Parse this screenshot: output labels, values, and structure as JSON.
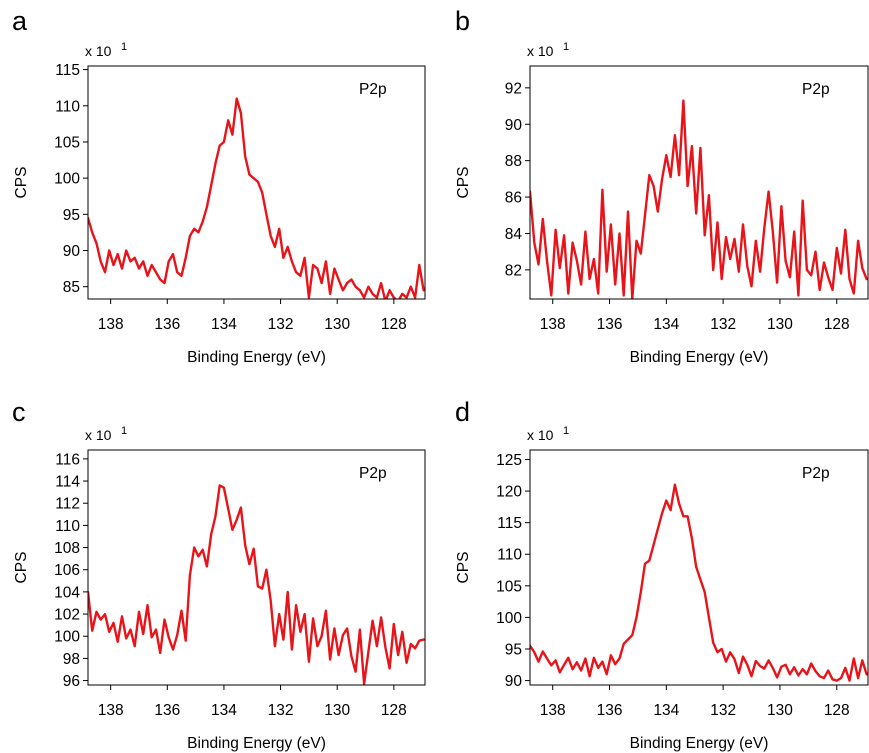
{
  "chart_data": [
    {
      "panel": "a",
      "type": "line",
      "multiplier_base": "x 10",
      "multiplier_exp": "1",
      "annotation": "P2p",
      "xlabel": "Binding Energy (eV)",
      "ylabel": "CPS",
      "xlim": [
        138.8,
        126.9
      ],
      "ylim": [
        83.3,
        115.5
      ],
      "xticks": [
        138,
        136,
        134,
        132,
        130,
        128
      ],
      "yticks": [
        85,
        90,
        95,
        100,
        105,
        110,
        115
      ],
      "series_color": "#e8141a",
      "x": [
        138.8,
        138.65,
        138.5,
        138.35,
        138.2,
        138.05,
        137.9,
        137.75,
        137.6,
        137.45,
        137.3,
        137.15,
        137.0,
        136.85,
        136.7,
        136.55,
        136.4,
        136.25,
        136.1,
        135.95,
        135.8,
        135.65,
        135.5,
        135.35,
        135.2,
        135.05,
        134.9,
        134.75,
        134.6,
        134.45,
        134.3,
        134.15,
        134.0,
        133.85,
        133.7,
        133.55,
        133.4,
        133.25,
        133.1,
        132.95,
        132.8,
        132.65,
        132.5,
        132.35,
        132.2,
        132.05,
        131.9,
        131.75,
        131.6,
        131.45,
        131.3,
        131.15,
        131.0,
        130.85,
        130.7,
        130.55,
        130.4,
        130.25,
        130.1,
        129.95,
        129.8,
        129.65,
        129.5,
        129.35,
        129.2,
        129.05,
        128.9,
        128.75,
        128.6,
        128.45,
        128.3,
        128.15,
        128.0,
        127.85,
        127.7,
        127.55,
        127.4,
        127.25,
        127.1,
        126.95
      ],
      "y": [
        94.5,
        92.5,
        91.0,
        88.5,
        87.0,
        90.0,
        88.0,
        89.5,
        87.5,
        90.0,
        88.5,
        89.0,
        87.5,
        88.5,
        86.5,
        88.0,
        87.0,
        86.0,
        85.5,
        88.5,
        89.5,
        87.0,
        86.5,
        89.0,
        92.0,
        93.0,
        92.5,
        94.0,
        96.0,
        99.0,
        102.0,
        104.5,
        105.0,
        108.0,
        106.0,
        111.0,
        109.0,
        103.0,
        100.5,
        100.0,
        99.5,
        98.0,
        95.0,
        92.0,
        90.5,
        93.0,
        89.0,
        90.5,
        88.5,
        87.0,
        86.5,
        89.0,
        83.5,
        88.0,
        87.5,
        85.5,
        88.5,
        84.0,
        87.5,
        86.0,
        84.5,
        85.5,
        86.0,
        85.0,
        84.5,
        83.5,
        85.0,
        84.0,
        83.5,
        85.5,
        83.0,
        84.5,
        83.5,
        83.0,
        84.0,
        83.5,
        85.0,
        83.5,
        88.0,
        84.5
      ]
    },
    {
      "panel": "b",
      "type": "line",
      "multiplier_base": "x 10",
      "multiplier_exp": "1",
      "annotation": "P2p",
      "xlabel": "Binding Energy (eV)",
      "ylabel": "CPS",
      "xlim": [
        138.8,
        126.9
      ],
      "ylim": [
        80.4,
        93.2
      ],
      "xticks": [
        138,
        136,
        134,
        132,
        130,
        128
      ],
      "yticks": [
        82,
        84,
        86,
        88,
        90,
        92
      ],
      "series_color": "#e8141a",
      "x": [
        138.8,
        138.65,
        138.5,
        138.35,
        138.2,
        138.05,
        137.9,
        137.75,
        137.6,
        137.45,
        137.3,
        137.15,
        137.0,
        136.85,
        136.7,
        136.55,
        136.4,
        136.25,
        136.1,
        135.95,
        135.8,
        135.65,
        135.5,
        135.35,
        135.2,
        135.05,
        134.9,
        134.75,
        134.6,
        134.45,
        134.3,
        134.15,
        134.0,
        133.85,
        133.7,
        133.55,
        133.4,
        133.25,
        133.1,
        132.95,
        132.8,
        132.65,
        132.5,
        132.35,
        132.2,
        132.05,
        131.9,
        131.75,
        131.6,
        131.45,
        131.3,
        131.15,
        131.0,
        130.85,
        130.7,
        130.55,
        130.4,
        130.25,
        130.1,
        129.95,
        129.8,
        129.65,
        129.5,
        129.35,
        129.2,
        129.05,
        128.9,
        128.75,
        128.6,
        128.45,
        128.3,
        128.15,
        128.0,
        127.85,
        127.7,
        127.55,
        127.4,
        127.25,
        127.1,
        126.95
      ],
      "y": [
        86.3,
        83.5,
        82.3,
        84.8,
        82.5,
        80.6,
        84.2,
        82.1,
        83.9,
        80.7,
        83.5,
        82.5,
        81.2,
        84.1,
        81.5,
        82.6,
        80.7,
        86.4,
        81.9,
        84.5,
        81.2,
        84.0,
        80.6,
        85.2,
        80.4,
        83.6,
        82.9,
        85.0,
        87.2,
        86.6,
        85.2,
        87.0,
        88.3,
        87.1,
        89.4,
        87.2,
        91.3,
        86.6,
        88.8,
        85.1,
        88.7,
        83.9,
        86.1,
        82.0,
        84.6,
        81.5,
        83.8,
        82.6,
        83.7,
        81.9,
        84.5,
        82.2,
        81.1,
        83.6,
        81.9,
        84.3,
        86.3,
        84.1,
        81.3,
        85.5,
        82.5,
        81.6,
        84.1,
        80.6,
        85.8,
        82.0,
        81.7,
        83.0,
        80.9,
        82.4,
        81.6,
        80.9,
        83.2,
        81.8,
        84.2,
        81.5,
        80.7,
        83.6,
        82.1,
        81.5
      ]
    },
    {
      "panel": "c",
      "type": "line",
      "multiplier_base": "x 10",
      "multiplier_exp": "1",
      "annotation": "P2p",
      "xlabel": "Binding Energy (eV)",
      "ylabel": "CPS",
      "xlim": [
        138.8,
        126.9
      ],
      "ylim": [
        95.6,
        116.8
      ],
      "xticks": [
        138,
        136,
        134,
        132,
        130,
        128
      ],
      "yticks": [
        96,
        98,
        100,
        102,
        104,
        106,
        108,
        110,
        112,
        114,
        116
      ],
      "series_color": "#e8141a",
      "x": [
        138.8,
        138.65,
        138.5,
        138.35,
        138.2,
        138.05,
        137.9,
        137.75,
        137.6,
        137.45,
        137.3,
        137.15,
        137.0,
        136.85,
        136.7,
        136.55,
        136.4,
        136.25,
        136.1,
        135.95,
        135.8,
        135.65,
        135.5,
        135.35,
        135.2,
        135.05,
        134.9,
        134.75,
        134.6,
        134.45,
        134.3,
        134.15,
        134.0,
        133.85,
        133.7,
        133.55,
        133.4,
        133.25,
        133.1,
        132.95,
        132.8,
        132.65,
        132.5,
        132.35,
        132.2,
        132.05,
        131.9,
        131.75,
        131.6,
        131.45,
        131.3,
        131.15,
        131.0,
        130.85,
        130.7,
        130.55,
        130.4,
        130.25,
        130.1,
        129.95,
        129.8,
        129.65,
        129.5,
        129.35,
        129.2,
        129.05,
        128.9,
        128.75,
        128.6,
        128.45,
        128.3,
        128.15,
        128.0,
        127.85,
        127.7,
        127.55,
        127.4,
        127.25,
        127.1,
        126.95
      ],
      "y": [
        104.0,
        100.5,
        102.2,
        101.5,
        102.0,
        100.4,
        101.2,
        99.5,
        101.8,
        99.8,
        100.6,
        99.1,
        102.2,
        100.2,
        102.8,
        99.9,
        100.6,
        98.5,
        101.5,
        99.9,
        98.8,
        100.1,
        102.3,
        99.6,
        105.5,
        108.0,
        107.2,
        107.8,
        106.3,
        109.2,
        110.8,
        113.6,
        113.4,
        111.5,
        109.6,
        110.5,
        111.6,
        108.2,
        106.5,
        107.9,
        104.5,
        104.3,
        106.0,
        103.2,
        99.1,
        102.0,
        99.7,
        104.0,
        98.8,
        102.8,
        100.4,
        102.0,
        97.7,
        101.6,
        99.1,
        100.0,
        102.3,
        97.9,
        100.7,
        98.3,
        100.1,
        100.7,
        98.2,
        96.8,
        100.6,
        95.7,
        98.6,
        101.4,
        99.1,
        101.7,
        99.0,
        97.1,
        101.1,
        98.3,
        100.4,
        97.6,
        99.3,
        98.9,
        99.6,
        99.7
      ]
    },
    {
      "panel": "d",
      "type": "line",
      "multiplier_base": "x 10",
      "multiplier_exp": "1",
      "annotation": "P2p",
      "xlabel": "Binding Energy (eV)",
      "ylabel": "CPS",
      "xlim": [
        138.8,
        126.9
      ],
      "ylim": [
        89.3,
        126.5
      ],
      "xticks": [
        138,
        136,
        134,
        132,
        130,
        128
      ],
      "yticks": [
        90,
        95,
        100,
        105,
        110,
        115,
        120,
        125
      ],
      "series_color": "#e8141a",
      "x": [
        138.8,
        138.65,
        138.5,
        138.35,
        138.2,
        138.05,
        137.9,
        137.75,
        137.6,
        137.45,
        137.3,
        137.15,
        137.0,
        136.85,
        136.7,
        136.55,
        136.4,
        136.25,
        136.1,
        135.95,
        135.8,
        135.65,
        135.5,
        135.35,
        135.2,
        135.05,
        134.9,
        134.75,
        134.6,
        134.45,
        134.3,
        134.15,
        134.0,
        133.85,
        133.7,
        133.55,
        133.4,
        133.25,
        133.1,
        132.95,
        132.8,
        132.65,
        132.5,
        132.35,
        132.2,
        132.05,
        131.9,
        131.75,
        131.6,
        131.45,
        131.3,
        131.15,
        131.0,
        130.85,
        130.7,
        130.55,
        130.4,
        130.25,
        130.1,
        129.95,
        129.8,
        129.65,
        129.5,
        129.35,
        129.2,
        129.05,
        128.9,
        128.75,
        128.6,
        128.45,
        128.3,
        128.15,
        128.0,
        127.85,
        127.7,
        127.55,
        127.4,
        127.25,
        127.1,
        126.95
      ],
      "y": [
        95.5,
        94.5,
        93.0,
        94.6,
        93.5,
        92.4,
        93.2,
        91.3,
        92.5,
        93.6,
        91.8,
        92.9,
        91.6,
        93.5,
        90.7,
        93.6,
        92.0,
        93.0,
        91.0,
        94.0,
        92.6,
        93.5,
        95.8,
        96.5,
        97.2,
        100.0,
        104.0,
        108.5,
        109.0,
        111.5,
        114.0,
        116.5,
        118.5,
        117.0,
        121.0,
        118.0,
        116.0,
        116.0,
        112.5,
        108.0,
        106.0,
        104.0,
        100.0,
        96.0,
        94.5,
        95.0,
        93.0,
        94.5,
        93.4,
        91.2,
        93.8,
        92.5,
        90.7,
        93.1,
        92.3,
        91.9,
        93.2,
        92.0,
        90.5,
        92.2,
        92.5,
        91.0,
        92.1,
        90.8,
        91.8,
        91.0,
        92.7,
        91.5,
        90.7,
        90.4,
        91.6,
        90.2,
        90.0,
        90.4,
        92.0,
        90.0,
        93.5,
        90.4,
        93.2,
        91.0
      ]
    }
  ]
}
